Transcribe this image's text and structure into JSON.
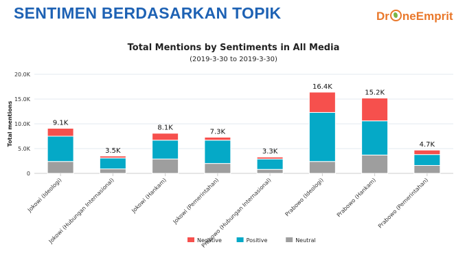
{
  "header": {
    "title": "SENTIMEN BERDASARKAN TOPIK",
    "logo_part1": "Dr",
    "logo_part2": "neEmprit"
  },
  "chart_data": {
    "type": "bar",
    "stacked": true,
    "title": "Total Mentions by Sentiments in All Media",
    "subtitle": "(2019-3-30 to 2019-3-30)",
    "ylabel": "Total mentions",
    "ylim": [
      0,
      20000
    ],
    "yticks": [
      0,
      5000,
      10000,
      15000,
      20000
    ],
    "ytick_labels": [
      "0",
      "5.0K",
      "10.0K",
      "15.0K",
      "20.0K"
    ],
    "categories": [
      "Jokowi (Ideologi)",
      "Jokowi (Hubungan Internasional)",
      "Jokowi (Hankam)",
      "Jokowi (Pemerintahan)",
      "Prabowo (Hubungan Internasional)",
      "Prabowo (Ideologi)",
      "Prabowo (Hankam)",
      "Prabowo (Pemerintahan)"
    ],
    "totals_labels": [
      "9.1K",
      "3.5K",
      "8.1K",
      "7.3K",
      "3.3K",
      "16.4K",
      "15.2K",
      "4.7K"
    ],
    "series": [
      {
        "name": "Neutral",
        "color": "#9e9e9e",
        "values": [
          2400,
          900,
          2900,
          2000,
          800,
          2400,
          3700,
          1600
        ]
      },
      {
        "name": "Positive",
        "color": "#05a9c7",
        "values": [
          5100,
          2200,
          3800,
          4700,
          2100,
          9900,
          6900,
          2200
        ]
      },
      {
        "name": "Negative",
        "color": "#f6504d",
        "values": [
          1600,
          400,
          1400,
          600,
          400,
          4100,
          4600,
          900
        ]
      }
    ],
    "legend": {
      "position": "bottom",
      "order": [
        "Negative",
        "Positive",
        "Neutral"
      ]
    },
    "grid": true
  }
}
